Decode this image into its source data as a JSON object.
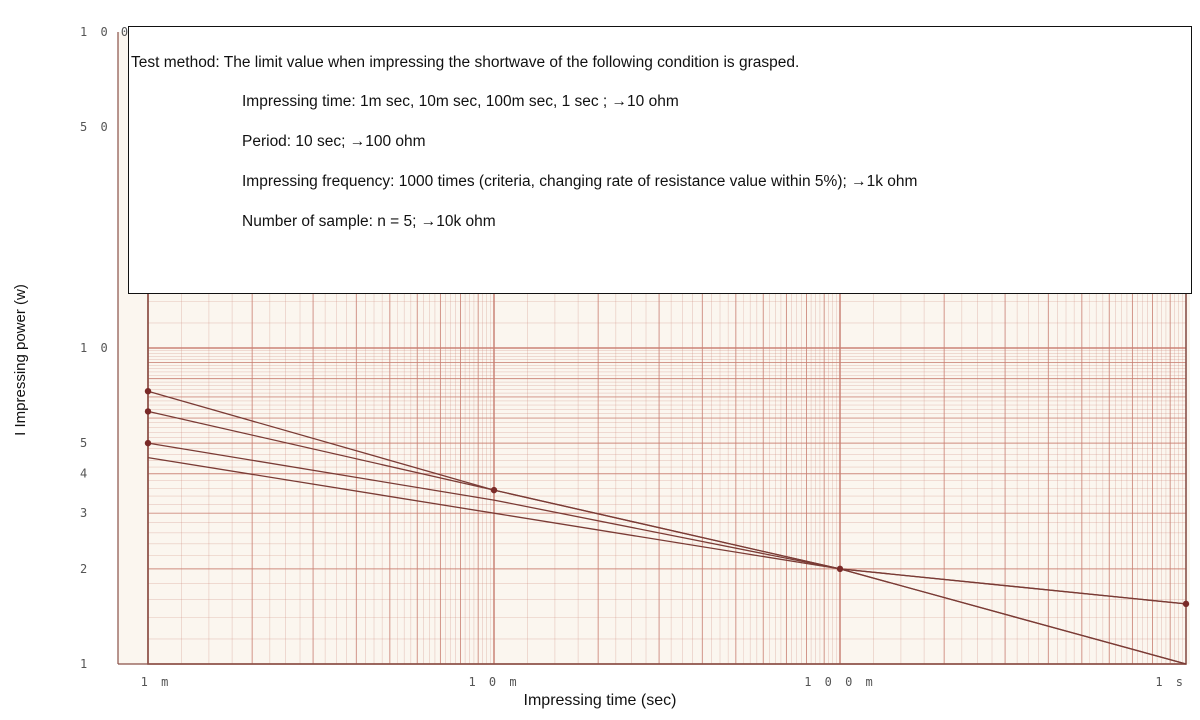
{
  "chart_data": {
    "type": "line",
    "xscale": "log",
    "yscale": "log",
    "xlim": [
      0.001,
      1
    ],
    "ylim": [
      1,
      100
    ],
    "grid": true,
    "xlabel": "Impressing time (sec)",
    "ylabel": "I Impressing power (w)",
    "xtick_labels": [
      {
        "v": 0.001,
        "label": "1 m"
      },
      {
        "v": 0.01,
        "label": "1 0 m"
      },
      {
        "v": 0.1,
        "label": "1 0 0 m"
      },
      {
        "v": 1,
        "label": "1 s"
      }
    ],
    "ytick_labels": [
      {
        "v": 100,
        "label": "1 0 0"
      },
      {
        "v": 50,
        "label": "5 0"
      },
      {
        "v": 10,
        "label": "1 0"
      },
      {
        "v": 5,
        "label": "5"
      },
      {
        "v": 4,
        "label": "4"
      },
      {
        "v": 3,
        "label": "3"
      },
      {
        "v": 2,
        "label": "2"
      },
      {
        "v": 1,
        "label": "1"
      }
    ],
    "series": [
      {
        "x": [
          0.001,
          0.01,
          0.1,
          1
        ],
        "y": [
          7.3,
          3.55,
          2.0,
          1.55
        ]
      },
      {
        "x": [
          0.001,
          0.01,
          0.1,
          1
        ],
        "y": [
          6.3,
          3.55,
          2.0,
          1.55
        ]
      },
      {
        "x": [
          0.001,
          0.01,
          0.1,
          1
        ],
        "y": [
          5.0,
          3.3,
          2.0,
          1.0
        ]
      },
      {
        "x": [
          0.001,
          0.01,
          0.1,
          1
        ],
        "y": [
          4.5,
          3.0,
          2.0,
          1.0
        ]
      }
    ],
    "marked_points": [
      {
        "x": 0.001,
        "y": 7.3
      },
      {
        "x": 0.001,
        "y": 6.3
      },
      {
        "x": 0.001,
        "y": 5.0
      },
      {
        "x": 0.01,
        "y": 3.55
      },
      {
        "x": 0.1,
        "y": 2.0
      },
      {
        "x": 1,
        "y": 1.55
      }
    ],
    "colors": {
      "grid": "#c97f72",
      "line": "#7a3b35",
      "point": "#7a2a28"
    }
  },
  "note": {
    "title": "Test method: The limit value when impressing the shortwave of the following condition is grasped.",
    "items": [
      "Impressing time: 1m sec, 10m sec, 100m sec, 1 sec ; →10 ohm",
      "Period: 10 sec; →100 ohm",
      "Impressing frequency: 1000 times (criteria, changing rate of resistance value within 5%); →1k ohm",
      "Number of sample: n = 5; →10k ohm"
    ]
  }
}
